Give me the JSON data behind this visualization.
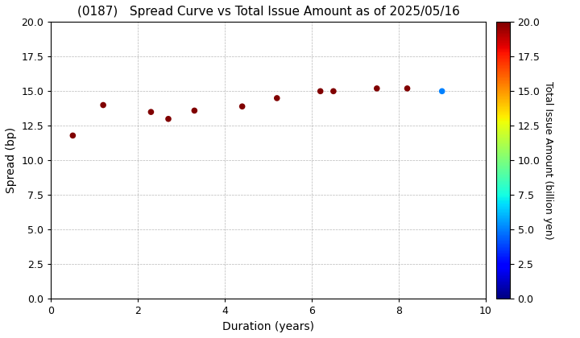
{
  "title": "(0187)   Spread Curve vs Total Issue Amount as of 2025/05/16",
  "xlabel": "Duration (years)",
  "ylabel": "Spread (bp)",
  "colorbar_label": "Total Issue Amount (billion yen)",
  "xlim": [
    0,
    10
  ],
  "ylim": [
    0.0,
    20.0
  ],
  "points": [
    {
      "duration": 0.5,
      "spread": 11.8,
      "total_issue": 20.0
    },
    {
      "duration": 1.2,
      "spread": 14.0,
      "total_issue": 20.0
    },
    {
      "duration": 2.3,
      "spread": 13.5,
      "total_issue": 20.0
    },
    {
      "duration": 2.7,
      "spread": 13.0,
      "total_issue": 20.0
    },
    {
      "duration": 3.3,
      "spread": 13.6,
      "total_issue": 20.0
    },
    {
      "duration": 4.4,
      "spread": 13.9,
      "total_issue": 20.0
    },
    {
      "duration": 5.2,
      "spread": 14.5,
      "total_issue": 20.0
    },
    {
      "duration": 6.2,
      "spread": 15.0,
      "total_issue": 20.0
    },
    {
      "duration": 6.5,
      "spread": 15.0,
      "total_issue": 20.0
    },
    {
      "duration": 7.5,
      "spread": 15.2,
      "total_issue": 20.0
    },
    {
      "duration": 8.2,
      "spread": 15.2,
      "total_issue": 20.0
    },
    {
      "duration": 9.0,
      "spread": 15.0,
      "total_issue": 5.0
    }
  ],
  "cmap": "jet",
  "clim": [
    0.0,
    20.0
  ],
  "colorbar_ticks": [
    0.0,
    2.5,
    5.0,
    7.5,
    10.0,
    12.5,
    15.0,
    17.5,
    20.0
  ],
  "yticks": [
    0.0,
    2.5,
    5.0,
    7.5,
    10.0,
    12.5,
    15.0,
    17.5,
    20.0
  ],
  "xticks": [
    0,
    2,
    4,
    6,
    8,
    10
  ],
  "background_color": "#ffffff",
  "grid_color": "#999999",
  "title_fontsize": 11,
  "axis_fontsize": 10,
  "tick_fontsize": 9,
  "marker_size": 30,
  "fig_width": 7.2,
  "fig_height": 4.2,
  "dpi": 100
}
